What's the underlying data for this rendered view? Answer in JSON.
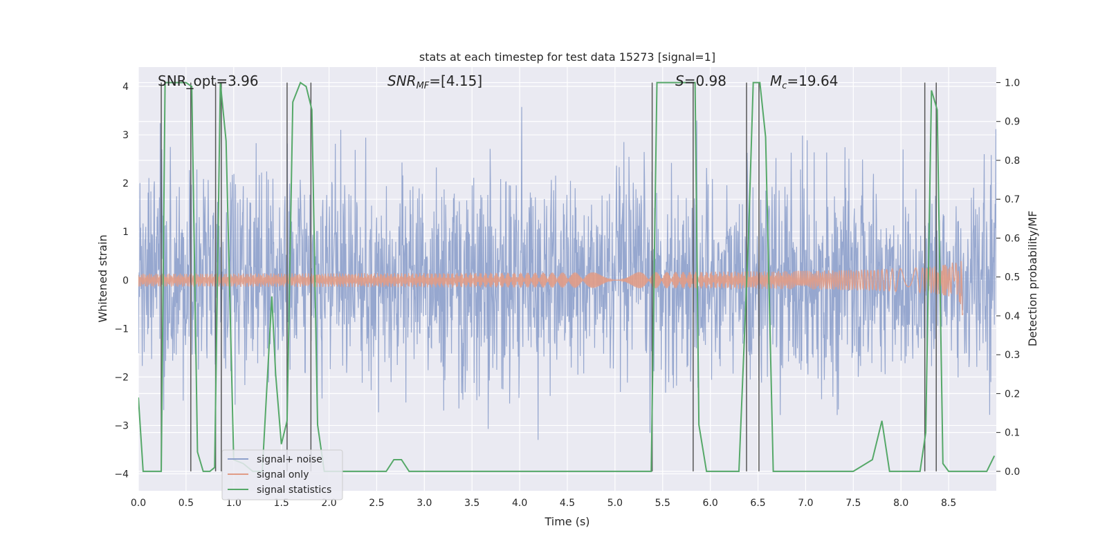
{
  "chart_data": {
    "type": "line",
    "title": "stats at each timestep for test data 15273 [signal=1]",
    "xlabel": "Time (s)",
    "ylabel": "Whitened strain",
    "ylabel_right": "Detection probability/MF",
    "xlim": [
      0.0,
      9.0
    ],
    "ylim": [
      -4.35,
      4.4
    ],
    "ylim_right": [
      -0.05,
      1.04
    ],
    "x_ticks": [
      "0.0",
      "0.5",
      "1.0",
      "1.5",
      "2.0",
      "2.5",
      "3.0",
      "3.5",
      "4.0",
      "4.5",
      "5.0",
      "5.5",
      "6.0",
      "6.5",
      "7.0",
      "7.5",
      "8.0",
      "8.5"
    ],
    "y_ticks": [
      "4",
      "3",
      "2",
      "1",
      "0",
      "−1",
      "−2",
      "−3",
      "−4"
    ],
    "y_ticks_right": [
      "1.0",
      "0.9",
      "0.8",
      "0.7",
      "0.6",
      "0.5",
      "0.4",
      "0.3",
      "0.2",
      "0.1",
      "0.0"
    ],
    "grid": true,
    "legend_position": "lower-left",
    "annotations": {
      "snr_opt": "SNR_opt=3.96",
      "snr_mf_label": "SNR",
      "snr_mf_sub": "MF",
      "snr_mf_value": "=[4.15]",
      "s_label": "S",
      "s_value": "=0.98",
      "mc_label": "M",
      "mc_sub": "c",
      "mc_value": "=19.64"
    },
    "series": [
      {
        "name": "signal+ noise",
        "color": "#8da0cb",
        "envelope": "noise-band",
        "x_range": [
          0.0,
          9.0
        ],
        "band": [
          -1.8,
          1.8
        ],
        "spikes_max": [
          -3.9,
          4.0
        ]
      },
      {
        "name": "signal only",
        "color": "#e19c86",
        "chirp_end_x": 8.65,
        "chirp_peak_amplitude": 0.8
      },
      {
        "name": "signal statistics",
        "color": "#55a868",
        "x": [
          0.0,
          0.05,
          0.1,
          0.15,
          0.2,
          0.24,
          0.28,
          0.32,
          0.4,
          0.5,
          0.56,
          0.62,
          0.68,
          0.75,
          0.8,
          0.86,
          0.92,
          1.0,
          1.1,
          1.2,
          1.3,
          1.4,
          1.44,
          1.5,
          1.56,
          1.62,
          1.7,
          1.76,
          1.82,
          1.88,
          1.95,
          2.0,
          2.6,
          2.68,
          2.76,
          2.84,
          2.9,
          3.5,
          4.0,
          4.5,
          5.0,
          5.38,
          5.44,
          5.5,
          5.7,
          5.84,
          5.88,
          5.96,
          6.0,
          6.1,
          6.3,
          6.4,
          6.45,
          6.52,
          6.58,
          6.66,
          6.8,
          7.0,
          7.5,
          7.7,
          7.8,
          7.88,
          8.0,
          8.2,
          8.26,
          8.32,
          8.38,
          8.44,
          8.5,
          8.7,
          8.9,
          8.98
        ],
        "y": [
          0.19,
          0.0,
          0.0,
          0.0,
          0.0,
          0.0,
          1.0,
          1.0,
          1.0,
          1.0,
          0.99,
          0.05,
          0.0,
          0.0,
          0.01,
          1.0,
          0.85,
          0.03,
          0.02,
          0.0,
          0.0,
          0.45,
          0.25,
          0.07,
          0.13,
          0.95,
          1.0,
          0.99,
          0.93,
          0.12,
          0.0,
          0.0,
          0.0,
          0.03,
          0.03,
          0.0,
          0.0,
          0.0,
          0.0,
          0.0,
          0.0,
          0.0,
          1.0,
          1.0,
          1.0,
          1.0,
          0.12,
          0.0,
          0.0,
          0.0,
          0.0,
          0.6,
          1.0,
          1.0,
          0.86,
          0.0,
          0.0,
          0.0,
          0.0,
          0.03,
          0.13,
          0.0,
          0.0,
          0.0,
          0.1,
          0.98,
          0.93,
          0.02,
          0.0,
          0.0,
          0.0,
          0.04
        ]
      }
    ],
    "vlines_x": [
      0.24,
      0.55,
      0.81,
      0.87,
      1.56,
      1.81,
      5.39,
      5.82,
      6.38,
      6.51,
      8.25,
      8.37
    ]
  }
}
